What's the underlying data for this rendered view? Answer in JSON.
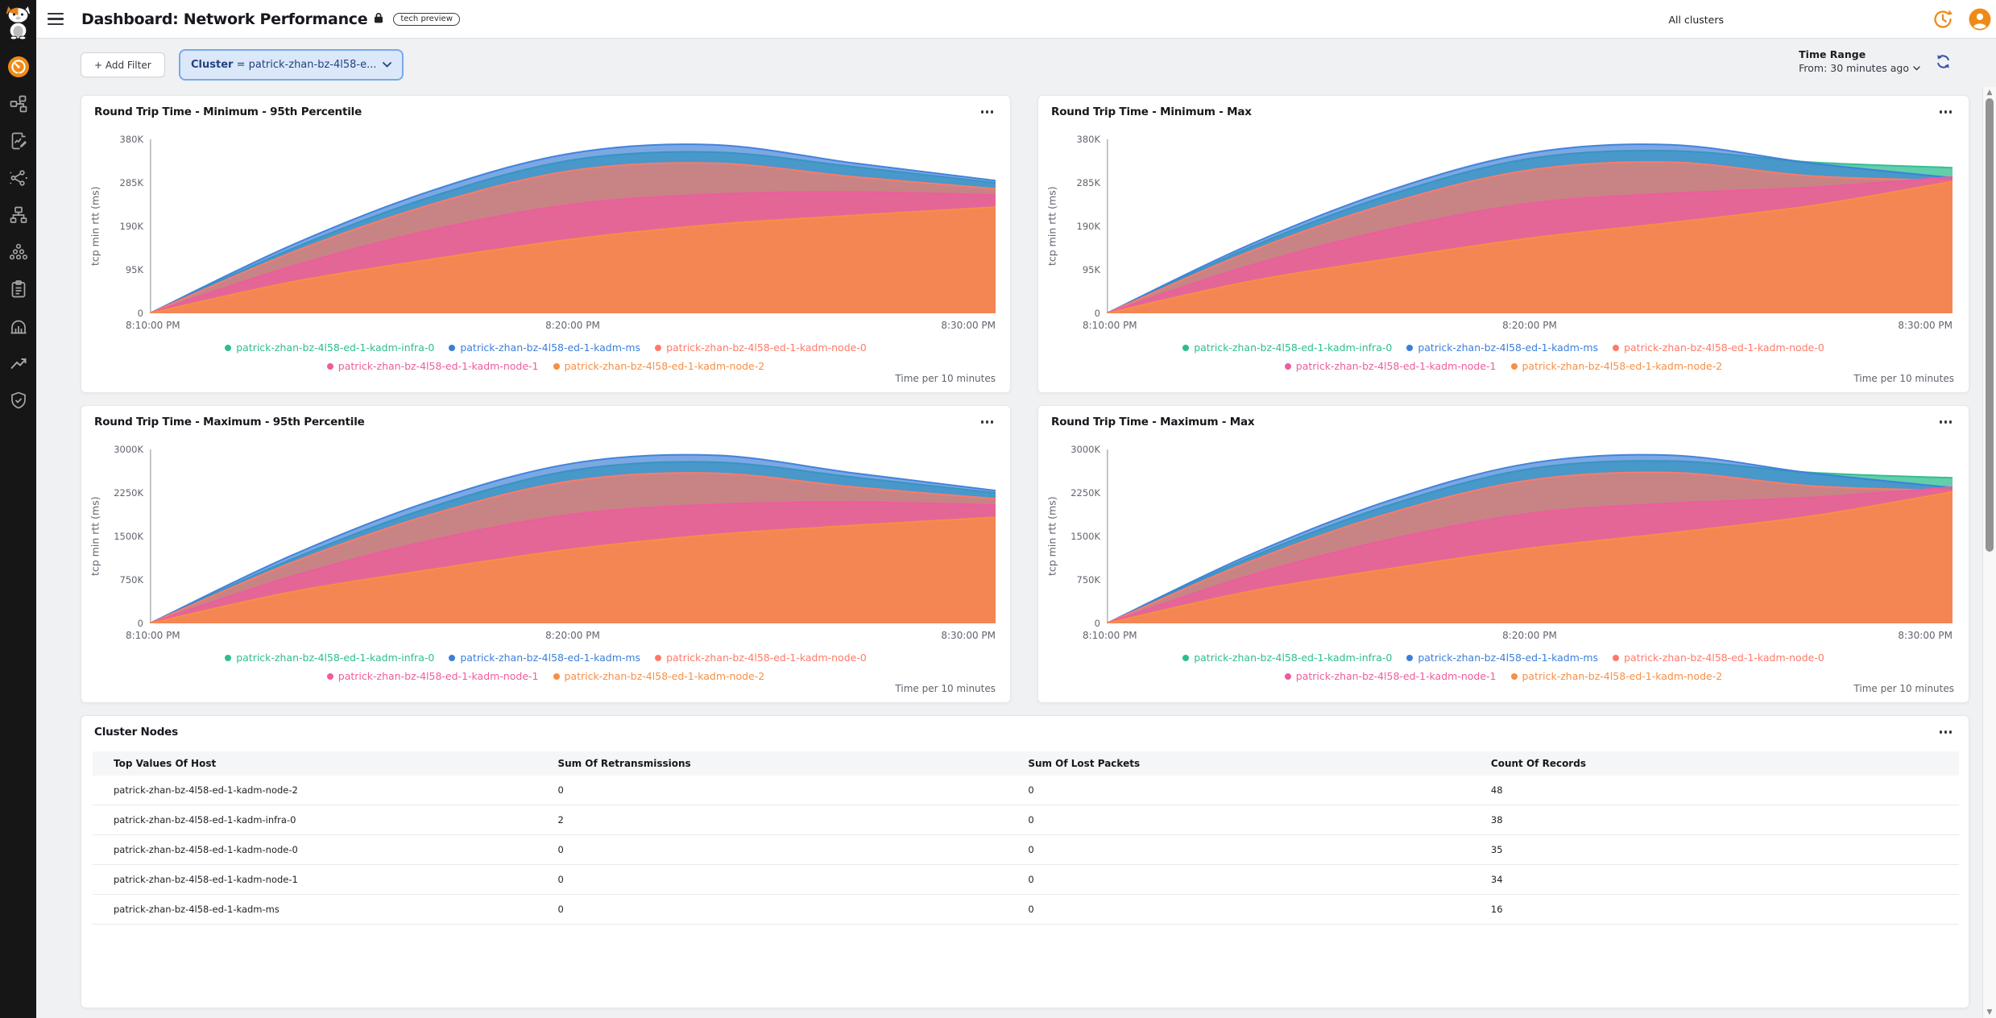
{
  "header": {
    "title": "Dashboard: Network Performance",
    "badge": "tech preview",
    "clusters_label": "All clusters"
  },
  "sidebar": {
    "icons": [
      "cat-logo",
      "gauge-icon",
      "topology-icon",
      "report-edit-icon",
      "share-graph-icon",
      "network-hierarchy-icon",
      "cluster-group-icon",
      "clipboard-icon",
      "bar-chart-icon",
      "trend-up-icon",
      "shield-check-icon"
    ],
    "active": "gauge-icon"
  },
  "filters": {
    "add_label": "+ Add Filter",
    "pill_field": "Cluster",
    "pill_rest": "= patrick-zhan-bz-4l58-e..."
  },
  "time_range": {
    "label": "Time Range",
    "value": "From: 30 minutes ago"
  },
  "colors": {
    "accent_orange": "#ee8b18",
    "filter_bg": "#dbe8fa",
    "filter_border": "#7aa7ec",
    "refresh_blue": "#3a4fae",
    "series_green": "#2ebd8f",
    "series_blue": "#3c7fd9",
    "series_salmon": "#ff7a68",
    "series_pink": "#ee5c9d",
    "series_orange": "#f78f44"
  },
  "chart_data": [
    {
      "type": "area",
      "title": "Round Trip Time - Minimum - 95th Percentile",
      "ylabel": "tcp min rtt (ms)",
      "ymax": 380000,
      "yticks": [
        {
          "label": "0",
          "value": 0
        },
        {
          "label": "95K",
          "value": 95000
        },
        {
          "label": "190K",
          "value": 190000
        },
        {
          "label": "285K",
          "value": 285000
        },
        {
          "label": "380K",
          "value": 380000
        }
      ],
      "xticks": [
        "8:10:00 PM",
        "8:20:00 PM",
        "8:30:00 PM"
      ],
      "footnote": "Time per 10 minutes",
      "legend_position": "bottom-center",
      "series": [
        {
          "name": "patrick-zhan-bz-4l58-ed-1-kadm-infra-0",
          "color": "#2ebd8f",
          "values": [
            0,
            140000,
            255000,
            335000,
            352000,
            320000,
            285000
          ]
        },
        {
          "name": "patrick-zhan-bz-4l58-ed-1-kadm-ms",
          "color": "#3c7fd9",
          "values": [
            0,
            148000,
            268000,
            350000,
            368000,
            328000,
            290000
          ]
        },
        {
          "name": "patrick-zhan-bz-4l58-ed-1-kadm-node-0",
          "color": "#ff7a68",
          "values": [
            0,
            132000,
            238000,
            312000,
            328000,
            298000,
            272000
          ]
        },
        {
          "name": "patrick-zhan-bz-4l58-ed-1-kadm-node-1",
          "color": "#ee5c9d",
          "values": [
            0,
            102000,
            182000,
            238000,
            260000,
            265000,
            258000
          ]
        },
        {
          "name": "patrick-zhan-bz-4l58-ed-1-kadm-node-2",
          "color": "#f78f44",
          "values": [
            0,
            68000,
            118000,
            162000,
            194000,
            214000,
            232000
          ]
        }
      ]
    },
    {
      "type": "area",
      "title": "Round Trip Time - Minimum - Max",
      "ylabel": "tcp min rtt (ms)",
      "ymax": 380000,
      "yticks": [
        {
          "label": "0",
          "value": 0
        },
        {
          "label": "95K",
          "value": 95000
        },
        {
          "label": "190K",
          "value": 190000
        },
        {
          "label": "285K",
          "value": 285000
        },
        {
          "label": "380K",
          "value": 380000
        }
      ],
      "xticks": [
        "8:10:00 PM",
        "8:20:00 PM",
        "8:30:00 PM"
      ],
      "footnote": "Time per 10 minutes",
      "legend_position": "bottom-center",
      "series": [
        {
          "name": "patrick-zhan-bz-4l58-ed-1-kadm-infra-0",
          "color": "#2ebd8f",
          "values": [
            0,
            142000,
            258000,
            338000,
            355000,
            330000,
            318000
          ]
        },
        {
          "name": "patrick-zhan-bz-4l58-ed-1-kadm-ms",
          "color": "#3c7fd9",
          "values": [
            0,
            148000,
            268000,
            350000,
            368000,
            328000,
            296000
          ]
        },
        {
          "name": "patrick-zhan-bz-4l58-ed-1-kadm-node-0",
          "color": "#ff7a68",
          "values": [
            0,
            133000,
            240000,
            313000,
            330000,
            300000,
            290000
          ]
        },
        {
          "name": "patrick-zhan-bz-4l58-ed-1-kadm-node-1",
          "color": "#ee5c9d",
          "values": [
            0,
            103000,
            183000,
            240000,
            262000,
            275000,
            298000
          ]
        },
        {
          "name": "patrick-zhan-bz-4l58-ed-1-kadm-node-2",
          "color": "#f78f44",
          "values": [
            0,
            69000,
            119000,
            164000,
            198000,
            235000,
            288000
          ]
        }
      ]
    },
    {
      "type": "area",
      "title": "Round Trip Time - Maximum - 95th Percentile",
      "ylabel": "tcp min rtt (ms)",
      "ymax": 3000000,
      "yticks": [
        {
          "label": "0",
          "value": 0
        },
        {
          "label": "750K",
          "value": 750000
        },
        {
          "label": "1500K",
          "value": 1500000
        },
        {
          "label": "2250K",
          "value": 2250000
        },
        {
          "label": "3000K",
          "value": 3000000
        }
      ],
      "xticks": [
        "8:10:00 PM",
        "8:20:00 PM",
        "8:30:00 PM"
      ],
      "footnote": "Time per 10 minutes",
      "legend_position": "bottom-center",
      "series": [
        {
          "name": "patrick-zhan-bz-4l58-ed-1-kadm-infra-0",
          "color": "#2ebd8f",
          "values": [
            0,
            1100000,
            2010000,
            2640000,
            2780000,
            2520000,
            2250000
          ]
        },
        {
          "name": "patrick-zhan-bz-4l58-ed-1-kadm-ms",
          "color": "#3c7fd9",
          "values": [
            0,
            1165000,
            2115000,
            2760000,
            2900000,
            2590000,
            2290000
          ]
        },
        {
          "name": "patrick-zhan-bz-4l58-ed-1-kadm-node-0",
          "color": "#ff7a68",
          "values": [
            0,
            1040000,
            1880000,
            2460000,
            2590000,
            2350000,
            2150000
          ]
        },
        {
          "name": "patrick-zhan-bz-4l58-ed-1-kadm-node-1",
          "color": "#ee5c9d",
          "values": [
            0,
            805000,
            1435000,
            1880000,
            2050000,
            2090000,
            2040000
          ]
        },
        {
          "name": "patrick-zhan-bz-4l58-ed-1-kadm-node-2",
          "color": "#f78f44",
          "values": [
            0,
            540000,
            930000,
            1280000,
            1530000,
            1690000,
            1830000
          ]
        }
      ]
    },
    {
      "type": "area",
      "title": "Round Trip Time - Maximum - Max",
      "ylabel": "tcp min rtt (ms)",
      "ymax": 3000000,
      "yticks": [
        {
          "label": "0",
          "value": 0
        },
        {
          "label": "750K",
          "value": 750000
        },
        {
          "label": "1500K",
          "value": 1500000
        },
        {
          "label": "2250K",
          "value": 2250000
        },
        {
          "label": "3000K",
          "value": 3000000
        }
      ],
      "xticks": [
        "8:10:00 PM",
        "8:20:00 PM",
        "8:30:00 PM"
      ],
      "footnote": "Time per 10 minutes",
      "legend_position": "bottom-center",
      "series": [
        {
          "name": "patrick-zhan-bz-4l58-ed-1-kadm-infra-0",
          "color": "#2ebd8f",
          "values": [
            0,
            1120000,
            2035000,
            2665000,
            2800000,
            2600000,
            2510000
          ]
        },
        {
          "name": "patrick-zhan-bz-4l58-ed-1-kadm-ms",
          "color": "#3c7fd9",
          "values": [
            0,
            1165000,
            2115000,
            2760000,
            2900000,
            2590000,
            2340000
          ]
        },
        {
          "name": "patrick-zhan-bz-4l58-ed-1-kadm-node-0",
          "color": "#ff7a68",
          "values": [
            0,
            1050000,
            1895000,
            2470000,
            2600000,
            2370000,
            2290000
          ]
        },
        {
          "name": "patrick-zhan-bz-4l58-ed-1-kadm-node-1",
          "color": "#ee5c9d",
          "values": [
            0,
            815000,
            1445000,
            1895000,
            2070000,
            2170000,
            2350000
          ]
        },
        {
          "name": "patrick-zhan-bz-4l58-ed-1-kadm-node-2",
          "color": "#f78f44",
          "values": [
            0,
            545000,
            940000,
            1295000,
            1560000,
            1850000,
            2270000
          ]
        }
      ]
    },
    {
      "type": "table",
      "title": "Cluster Nodes",
      "columns": [
        "Top Values Of Host",
        "Sum Of Retransmissions",
        "Sum Of Lost Packets",
        "Count Of Records"
      ],
      "rows": [
        [
          "patrick-zhan-bz-4l58-ed-1-kadm-node-2",
          "0",
          "0",
          "48"
        ],
        [
          "patrick-zhan-bz-4l58-ed-1-kadm-infra-0",
          "2",
          "0",
          "38"
        ],
        [
          "patrick-zhan-bz-4l58-ed-1-kadm-node-0",
          "0",
          "0",
          "35"
        ],
        [
          "patrick-zhan-bz-4l58-ed-1-kadm-node-1",
          "0",
          "0",
          "34"
        ],
        [
          "patrick-zhan-bz-4l58-ed-1-kadm-ms",
          "0",
          "0",
          "16"
        ]
      ]
    }
  ]
}
